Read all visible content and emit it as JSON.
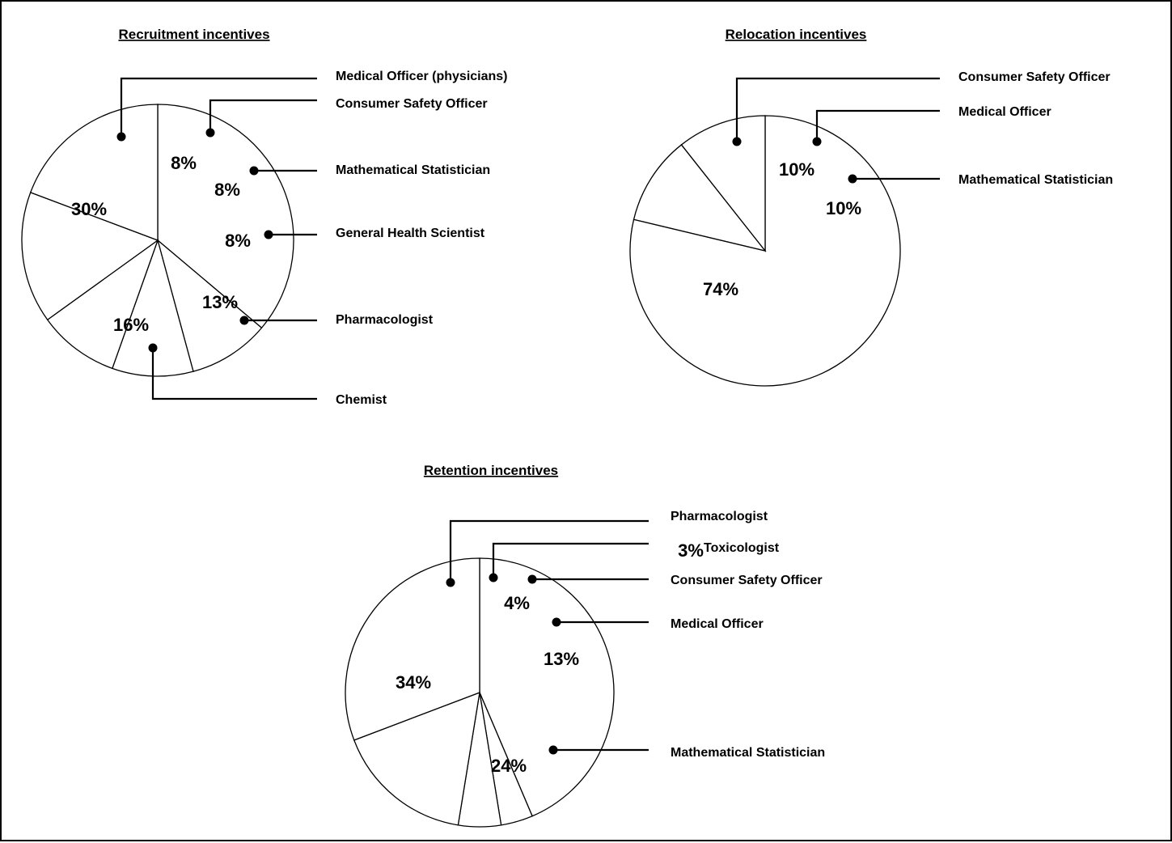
{
  "chart_data": [
    {
      "type": "pie",
      "title": "Recruitment incentives",
      "slices": [
        {
          "label": "Medical Officer (physicians)",
          "value": 30,
          "value_label": "30%"
        },
        {
          "label": "Consumer Safety Officer",
          "value": 8,
          "value_label": "8%"
        },
        {
          "label": "Mathematical Statistician",
          "value": 8,
          "value_label": "8%"
        },
        {
          "label": "General Health Scientist",
          "value": 8,
          "value_label": "8%"
        },
        {
          "label": "Pharmacologist",
          "value": 13,
          "value_label": "13%"
        },
        {
          "label": "Chemist",
          "value": 16,
          "value_label": "16%"
        }
      ]
    },
    {
      "type": "pie",
      "title": "Relocation incentives",
      "slices": [
        {
          "label": "Consumer Safety Officer",
          "value": 74,
          "value_label": "74%"
        },
        {
          "label": "Medical Officer",
          "value": 10,
          "value_label": "10%"
        },
        {
          "label": "Mathematical Statistician",
          "value": 10,
          "value_label": "10%"
        }
      ]
    },
    {
      "type": "pie",
      "title": "Retention incentives",
      "slices": [
        {
          "label": "Pharmacologist",
          "value": 34,
          "value_label": "34%"
        },
        {
          "label": "Toxicologist",
          "value": 3,
          "value_label": "3%"
        },
        {
          "label": "Consumer Safety Officer",
          "value": 4,
          "value_label": "4%"
        },
        {
          "label": "Medical Officer",
          "value": 13,
          "value_label": "13%"
        },
        {
          "label": "Mathematical Statistician",
          "value": 24,
          "value_label": "24%"
        }
      ]
    }
  ]
}
